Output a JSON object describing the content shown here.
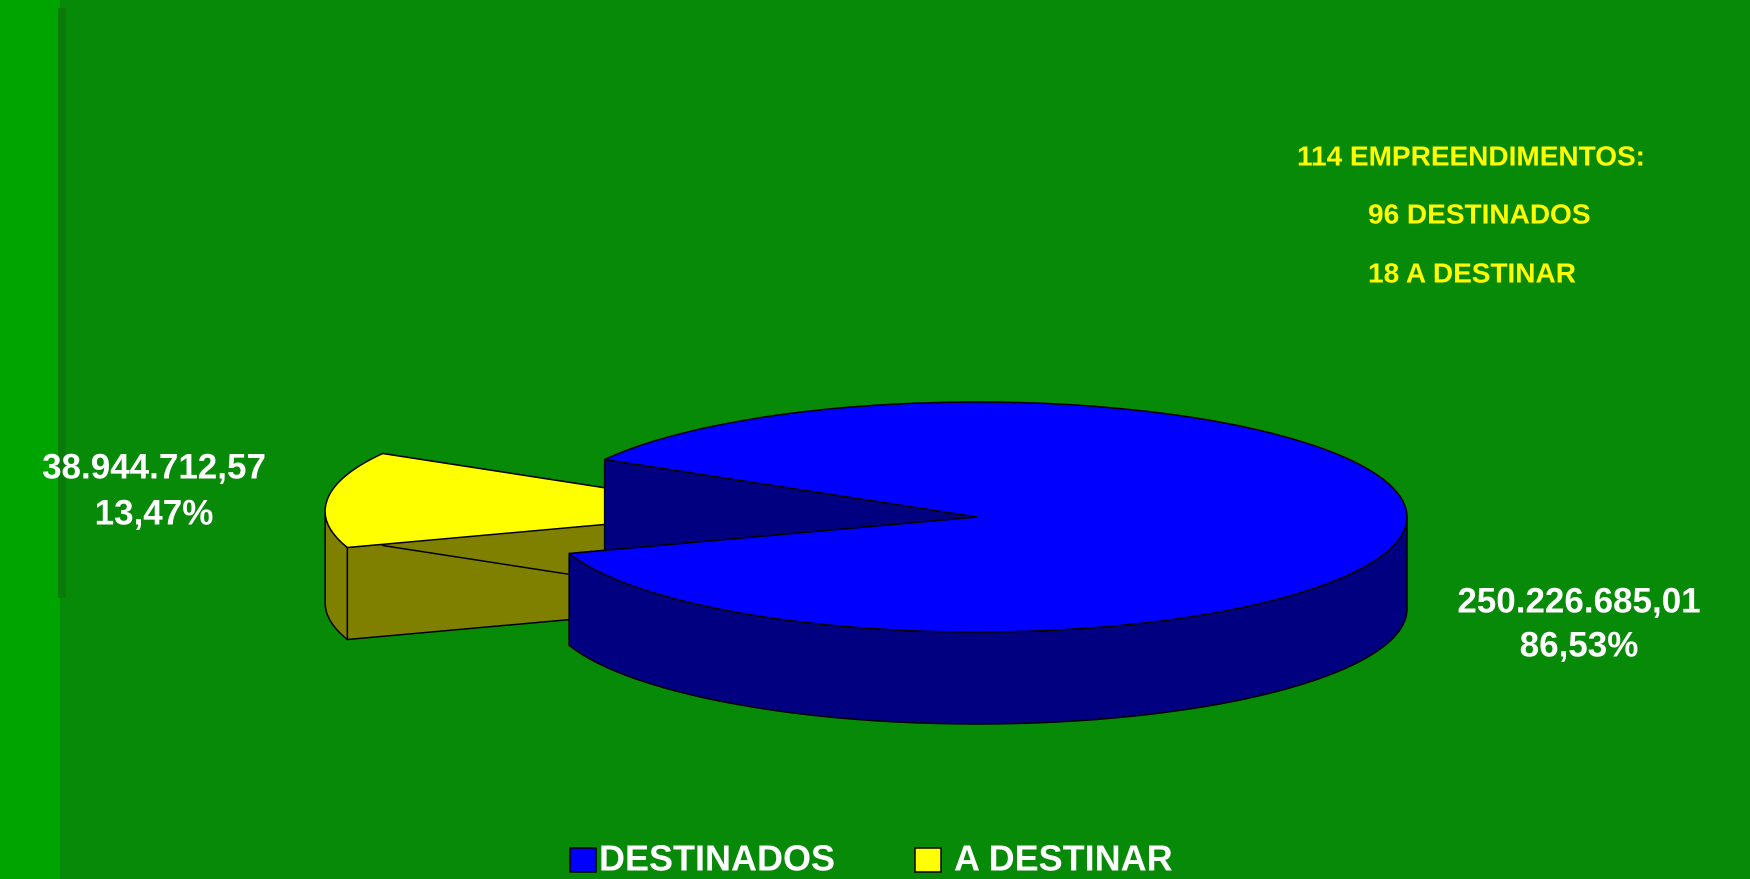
{
  "chart_data": {
    "type": "pie3d",
    "categories": [
      "DESTINADOS",
      "A DESTINAR"
    ],
    "values": [
      250226685.01,
      38944712.57
    ],
    "value_labels": [
      "250.226.685,01",
      "38.944.712,57"
    ],
    "percents": [
      86.53,
      13.47
    ],
    "percent_labels": [
      "86,53%",
      "13,47%"
    ],
    "colors": [
      "#0000ff",
      "#ffff00"
    ],
    "side_colors": [
      "#000080",
      "#808000"
    ],
    "annotations": [
      "114 EMPREENDIMENTOS:",
      "96 DESTINADOS",
      "18 A DESTINAR"
    ],
    "legend": "bottom"
  }
}
